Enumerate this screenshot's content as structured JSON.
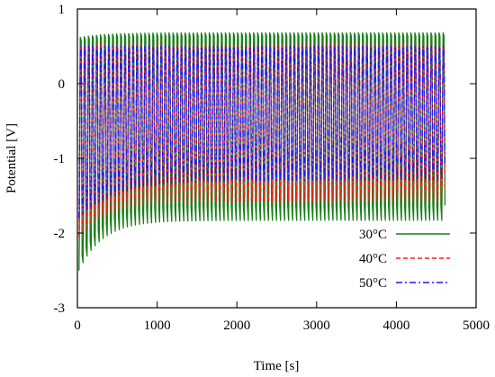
{
  "chart_data": {
    "type": "line",
    "xlabel": "Time [s]",
    "ylabel": "Potential [V]",
    "xlim": [
      0,
      5000
    ],
    "ylim": [
      -3,
      1
    ],
    "x_ticks": [
      0,
      1000,
      2000,
      3000,
      4000,
      5000
    ],
    "y_ticks": [
      -3,
      -2,
      -1,
      0,
      1
    ],
    "x_tick_labels": [
      "0",
      "1000",
      "2000",
      "3000",
      "4000",
      "5000"
    ],
    "y_tick_labels": [
      "-3",
      "-2",
      "-1",
      "0",
      "1"
    ],
    "grid": false,
    "legend_position": "bottom-right",
    "x_range": [
      20,
      4620
    ],
    "cycle_count": 91,
    "series": [
      {
        "name": "30°C",
        "color": "#1a7f1a",
        "dash": "solid",
        "upper_start": 0.62,
        "upper_end": 0.68,
        "lower_start": -2.45,
        "lower_end": -1.78,
        "settle_time_s": 900
      },
      {
        "name": "40°C",
        "color": "#ff1a1a",
        "dash": "dashed",
        "upper_start": 0.52,
        "upper_end": 0.52,
        "lower_start": -2.0,
        "lower_end": -1.53,
        "settle_time_s": 1100
      },
      {
        "name": "50°C",
        "color": "#1a1aff",
        "dash": "dashdot",
        "upper_start": 0.5,
        "upper_end": 0.5,
        "lower_start": -1.75,
        "lower_end": -1.24,
        "settle_time_s": 1500
      }
    ]
  }
}
